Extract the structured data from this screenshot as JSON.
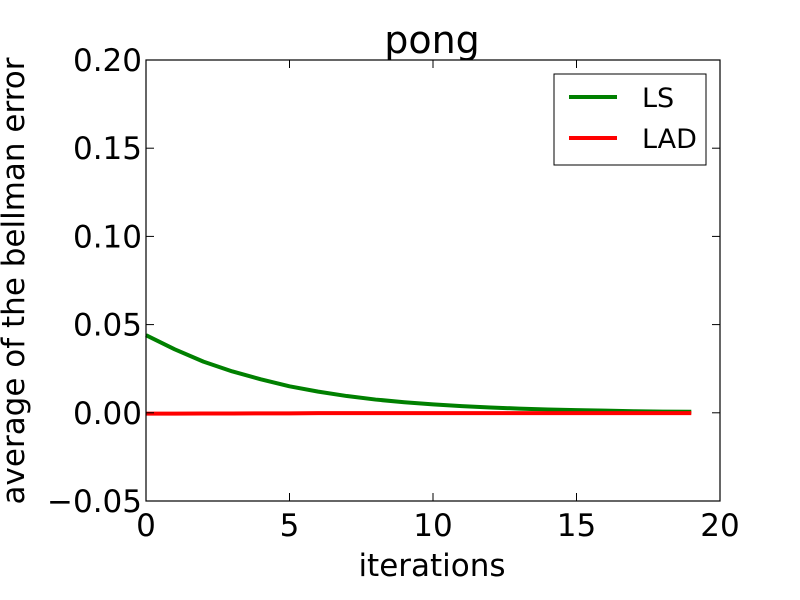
{
  "chart_data": {
    "type": "line",
    "title": "pong",
    "xlabel": "iterations",
    "ylabel": "average of the bellman error",
    "xlim": [
      0,
      20
    ],
    "ylim": [
      -0.05,
      0.2
    ],
    "x_ticks": [
      0,
      5,
      10,
      15,
      20
    ],
    "x_tick_labels": [
      "0",
      "5",
      "10",
      "15",
      "20"
    ],
    "y_ticks": [
      -0.05,
      0.0,
      0.05,
      0.1,
      0.15,
      0.2
    ],
    "y_tick_labels": [
      "−0.05",
      "0.00",
      "0.05",
      "0.10",
      "0.15",
      "0.20"
    ],
    "grid": false,
    "legend_position": "top-right",
    "x": [
      0,
      1,
      2,
      3,
      4,
      5,
      6,
      7,
      8,
      9,
      10,
      11,
      12,
      13,
      14,
      15,
      16,
      17,
      18,
      19
    ],
    "series": [
      {
        "name": "LS",
        "color": "#008000",
        "values": [
          0.044,
          0.036,
          0.029,
          0.0235,
          0.019,
          0.015,
          0.012,
          0.0095,
          0.0075,
          0.006,
          0.0048,
          0.0038,
          0.003,
          0.0024,
          0.0019,
          0.0015,
          0.0012,
          0.0009,
          0.0007,
          0.0006
        ]
      },
      {
        "name": "LAD",
        "color": "#ff0000",
        "values": [
          -0.0005,
          -0.0005,
          -0.0004,
          -0.0004,
          -0.0003,
          -0.0003,
          -0.0002,
          -0.0002,
          -0.0002,
          -0.0002,
          -0.0002,
          -0.0002,
          -0.0002,
          -0.0002,
          -0.0002,
          -0.0002,
          -0.0002,
          -0.0002,
          -0.0002,
          -0.0002
        ]
      }
    ]
  }
}
